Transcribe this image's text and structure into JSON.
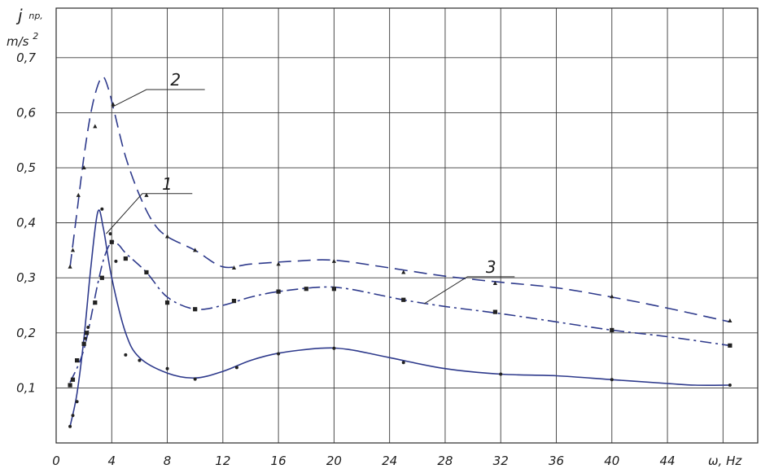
{
  "chart_data": {
    "type": "line",
    "ylabel_symbol": "j",
    "ylabel_sub": "np,",
    "ylabel_unit": "m/s",
    "ylabel_unit_exp": "2",
    "xlabel": "ω, Hz",
    "x_ticks": [
      "0",
      "4",
      "8",
      "12",
      "16",
      "20",
      "24",
      "28",
      "32",
      "36",
      "40",
      "44"
    ],
    "y_ticks": [
      "0,1",
      "0,2",
      "0,3",
      "0,4",
      "0,5",
      "0,6",
      "0,7"
    ],
    "xlim": [
      0,
      50.5
    ],
    "ylim": [
      0,
      0.79
    ],
    "grid": true,
    "line_color": "#2e3a8c",
    "series": [
      {
        "name": "1",
        "style": "solid",
        "marker": "dot",
        "curve": [
          [
            1,
            0.03
          ],
          [
            1.5,
            0.09
          ],
          [
            2,
            0.19
          ],
          [
            2.5,
            0.32
          ],
          [
            3,
            0.42
          ],
          [
            3.4,
            0.39
          ],
          [
            4,
            0.3
          ],
          [
            5,
            0.2
          ],
          [
            6,
            0.155
          ],
          [
            8,
            0.127
          ],
          [
            10,
            0.118
          ],
          [
            12,
            0.13
          ],
          [
            14,
            0.15
          ],
          [
            16,
            0.163
          ],
          [
            19,
            0.172
          ],
          [
            21,
            0.17
          ],
          [
            24,
            0.155
          ],
          [
            28,
            0.135
          ],
          [
            32,
            0.125
          ],
          [
            36,
            0.122
          ],
          [
            40,
            0.115
          ],
          [
            44,
            0.108
          ],
          [
            46,
            0.105
          ],
          [
            48.5,
            0.105
          ]
        ],
        "points": [
          [
            1,
            0.03
          ],
          [
            1.2,
            0.05
          ],
          [
            1.5,
            0.075
          ],
          [
            2.1,
            0.19
          ],
          [
            2.3,
            0.21
          ],
          [
            3.3,
            0.425
          ],
          [
            3.9,
            0.38
          ],
          [
            4.3,
            0.33
          ],
          [
            5,
            0.16
          ],
          [
            6,
            0.15
          ],
          [
            8,
            0.135
          ],
          [
            10,
            0.116
          ],
          [
            13,
            0.137
          ],
          [
            16,
            0.162
          ],
          [
            20,
            0.172
          ],
          [
            25,
            0.146
          ],
          [
            32,
            0.125
          ],
          [
            40,
            0.115
          ],
          [
            48.5,
            0.105
          ]
        ]
      },
      {
        "name": "2",
        "style": "dashed",
        "marker": "triangle",
        "curve": [
          [
            1,
            0.32
          ],
          [
            1.5,
            0.42
          ],
          [
            2,
            0.52
          ],
          [
            2.5,
            0.6
          ],
          [
            3,
            0.65
          ],
          [
            3.4,
            0.665
          ],
          [
            3.8,
            0.64
          ],
          [
            4.2,
            0.6
          ],
          [
            5,
            0.52
          ],
          [
            6,
            0.45
          ],
          [
            7,
            0.4
          ],
          [
            8,
            0.375
          ],
          [
            10,
            0.35
          ],
          [
            12,
            0.32
          ],
          [
            14,
            0.325
          ],
          [
            17,
            0.33
          ],
          [
            20,
            0.332
          ],
          [
            24,
            0.318
          ],
          [
            28,
            0.303
          ],
          [
            32,
            0.292
          ],
          [
            36,
            0.282
          ],
          [
            40,
            0.265
          ],
          [
            44,
            0.245
          ],
          [
            48.5,
            0.22
          ]
        ],
        "points": [
          [
            1,
            0.32
          ],
          [
            1.2,
            0.35
          ],
          [
            1.6,
            0.45
          ],
          [
            2,
            0.5
          ],
          [
            2.8,
            0.575
          ],
          [
            4.1,
            0.615
          ],
          [
            6.5,
            0.45
          ],
          [
            8,
            0.375
          ],
          [
            10,
            0.35
          ],
          [
            12.8,
            0.318
          ],
          [
            16,
            0.325
          ],
          [
            20,
            0.33
          ],
          [
            25,
            0.31
          ],
          [
            31.6,
            0.29
          ],
          [
            40,
            0.266
          ],
          [
            48.5,
            0.222
          ]
        ]
      },
      {
        "name": "3",
        "style": "dash-dot",
        "marker": "square",
        "curve": [
          [
            1,
            0.11
          ],
          [
            2,
            0.17
          ],
          [
            3,
            0.29
          ],
          [
            3.5,
            0.34
          ],
          [
            4,
            0.365
          ],
          [
            4.5,
            0.36
          ],
          [
            5,
            0.345
          ],
          [
            6.5,
            0.31
          ],
          [
            8,
            0.265
          ],
          [
            10,
            0.243
          ],
          [
            12,
            0.25
          ],
          [
            14,
            0.265
          ],
          [
            16,
            0.275
          ],
          [
            19,
            0.283
          ],
          [
            21,
            0.28
          ],
          [
            25,
            0.26
          ],
          [
            28,
            0.248
          ],
          [
            32,
            0.235
          ],
          [
            36,
            0.22
          ],
          [
            40,
            0.205
          ],
          [
            44,
            0.193
          ],
          [
            48.5,
            0.177
          ]
        ],
        "points": [
          [
            1,
            0.105
          ],
          [
            1.2,
            0.115
          ],
          [
            1.5,
            0.15
          ],
          [
            2,
            0.18
          ],
          [
            2.2,
            0.2
          ],
          [
            2.8,
            0.255
          ],
          [
            3.3,
            0.3
          ],
          [
            4,
            0.365
          ],
          [
            5,
            0.335
          ],
          [
            6.5,
            0.31
          ],
          [
            8,
            0.255
          ],
          [
            10,
            0.243
          ],
          [
            12.8,
            0.258
          ],
          [
            16,
            0.275
          ],
          [
            18,
            0.28
          ],
          [
            20,
            0.28
          ],
          [
            25,
            0.26
          ],
          [
            31.6,
            0.238
          ],
          [
            40,
            0.205
          ],
          [
            48.5,
            0.177
          ]
        ]
      }
    ],
    "curve_labels": [
      {
        "text": "1",
        "leader_from": [
          3.6,
          0.38
        ],
        "leader_to": [
          6.2,
          0.453
        ],
        "underline_to": [
          9.8,
          0.453
        ]
      },
      {
        "text": "2",
        "leader_from": [
          4.0,
          0.61
        ],
        "leader_to": [
          6.5,
          0.642
        ],
        "underline_to": [
          10.7,
          0.642
        ]
      },
      {
        "text": "3",
        "leader_from": [
          26.5,
          0.253
        ],
        "leader_to": [
          29.6,
          0.302
        ],
        "underline_to": [
          33,
          0.302
        ]
      }
    ]
  }
}
